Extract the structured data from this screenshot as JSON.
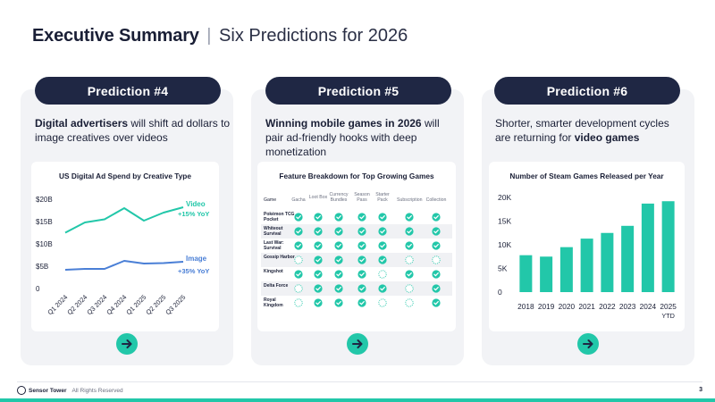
{
  "header": {
    "title_bold": "Executive Summary",
    "separator": "|",
    "title_rest": "Six Predictions for 2026"
  },
  "predictions": [
    {
      "label": "Prediction #4",
      "text_bold": "Digital advertisers",
      "text_rest": " will shift ad dollars to image creatives over videos"
    },
    {
      "label": "Prediction #5",
      "text_bold": "Winning mobile games in 2026",
      "text_rest": " will pair ad-friendly hooks with deep monetization"
    },
    {
      "label": "Prediction #6",
      "text_pre": "Shorter, smarter development cycles are returning for ",
      "text_bold": "video games"
    }
  ],
  "colors": {
    "navy": "#1f2744",
    "teal": "#22c7a9",
    "blue": "#4a7fd6",
    "panel": "#f2f3f6"
  },
  "icons": {
    "arrow": "arrow-right-circle-icon",
    "check": "check-circle-icon"
  },
  "chart_data": [
    {
      "type": "line",
      "title": "US Digital Ad Spend by Creative Type",
      "categories": [
        "Q1 2024",
        "Q2 2024",
        "Q3 2024",
        "Q4 2024",
        "Q1 2025",
        "Q2 2025",
        "Q3 2025"
      ],
      "y_ticks": [
        "$20B",
        "$15B",
        "$10B",
        "$5B",
        "0"
      ],
      "ylim": [
        0,
        20
      ],
      "series": [
        {
          "name": "Video",
          "growth": "+15% YoY",
          "color": "#22c7a9",
          "values": [
            12.5,
            14.8,
            15.5,
            18.0,
            15.2,
            17.0,
            18.2
          ]
        },
        {
          "name": "Image",
          "growth": "+35% YoY",
          "color": "#4a7fd6",
          "values": [
            4.2,
            4.4,
            4.4,
            6.2,
            5.6,
            5.7,
            6.0
          ]
        }
      ]
    },
    {
      "type": "table",
      "title": "Feature Breakdown for Top Growing Games",
      "columns": [
        "Game",
        "Gacha",
        "Loot Box",
        "Currency Bundles",
        "Season Pass",
        "Starter Pack",
        "Subscription",
        "Collection"
      ],
      "rows": [
        {
          "game": "Pokémon TCG Pocket",
          "features": [
            true,
            true,
            true,
            true,
            true,
            true,
            true
          ]
        },
        {
          "game": "Whiteout Survival",
          "features": [
            true,
            true,
            true,
            true,
            true,
            true,
            true
          ]
        },
        {
          "game": "Last War: Survival",
          "features": [
            true,
            true,
            true,
            true,
            true,
            true,
            true
          ]
        },
        {
          "game": "Gossip Harbor",
          "features": [
            false,
            true,
            true,
            true,
            true,
            false,
            false
          ]
        },
        {
          "game": "Kingshot",
          "features": [
            true,
            true,
            true,
            true,
            false,
            true,
            true
          ]
        },
        {
          "game": "Delta Force",
          "features": [
            false,
            true,
            true,
            true,
            true,
            false,
            true
          ]
        },
        {
          "game": "Royal Kingdom",
          "features": [
            false,
            true,
            true,
            true,
            false,
            false,
            true
          ]
        }
      ]
    },
    {
      "type": "bar",
      "title": "Number of Steam Games Released per Year",
      "categories": [
        "2018",
        "2019",
        "2020",
        "2021",
        "2022",
        "2023",
        "2024",
        "2025"
      ],
      "category_sublabels": [
        "",
        "",
        "",
        "",
        "",
        "",
        "",
        "YTD"
      ],
      "values": [
        7800,
        7500,
        9500,
        11300,
        12500,
        14000,
        18700,
        19200
      ],
      "y_ticks": [
        "20K",
        "15K",
        "10K",
        "5K",
        "0"
      ],
      "ylim": [
        0,
        20000
      ],
      "color": "#22c7a9"
    }
  ],
  "footer": {
    "brand": "Sensor Tower",
    "rights": "All Rights Reserved",
    "page_number": "3"
  }
}
